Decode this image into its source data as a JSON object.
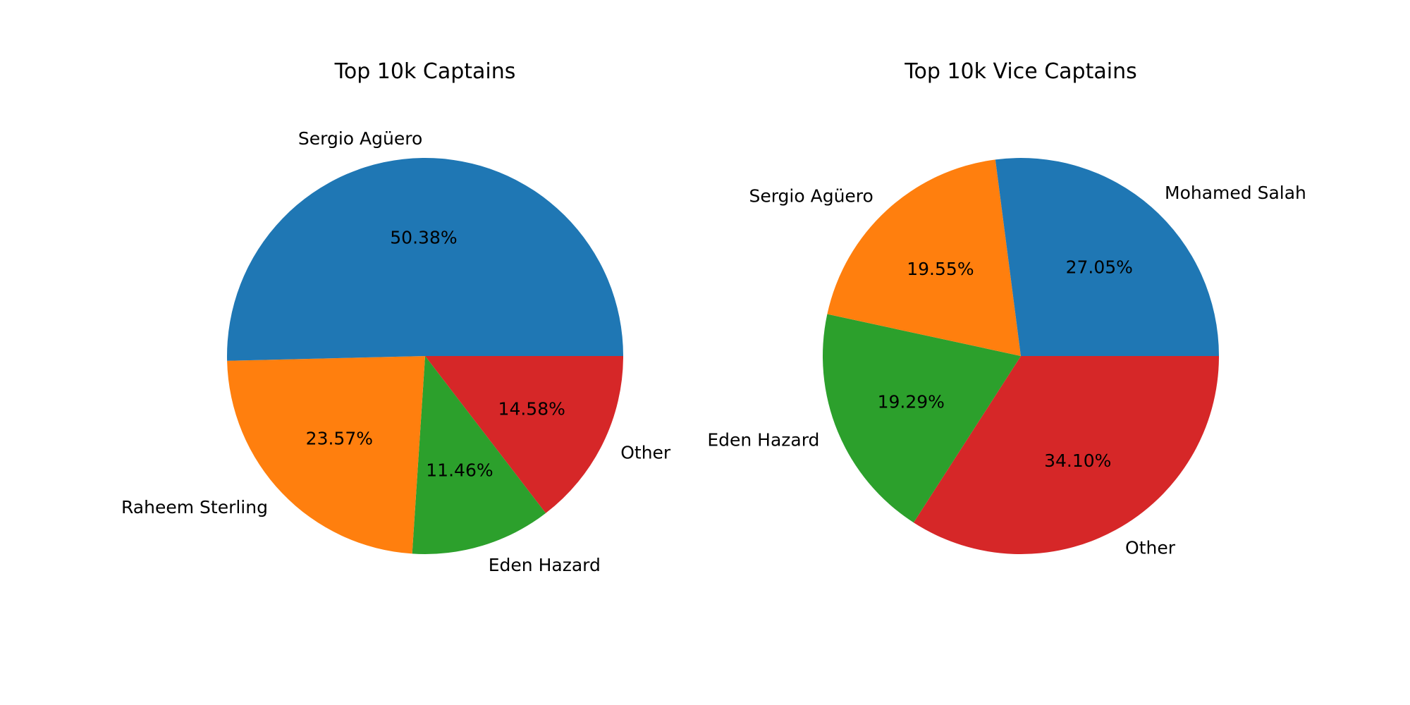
{
  "chart_data": [
    {
      "type": "pie",
      "title": "Top 10k Captains",
      "labels": [
        "Sergio Agüero",
        "Raheem Sterling",
        "Eden Hazard",
        "Other"
      ],
      "values": [
        50.38,
        23.57,
        11.46,
        14.58
      ],
      "pct_labels": [
        "50.38%",
        "23.57%",
        "11.46%",
        "14.58%"
      ],
      "colors": [
        "#1f77b4",
        "#ff7f0e",
        "#2ca02c",
        "#d62728"
      ],
      "start_angle_deg": 0,
      "direction": "counterclockwise"
    },
    {
      "type": "pie",
      "title": "Top 10k Vice Captains",
      "labels": [
        "Mohamed Salah",
        "Sergio Agüero",
        "Eden Hazard",
        "Other"
      ],
      "values": [
        27.05,
        19.55,
        19.29,
        34.1
      ],
      "pct_labels": [
        "27.05%",
        "19.55%",
        "19.29%",
        "34.10%"
      ],
      "colors": [
        "#1f77b4",
        "#ff7f0e",
        "#2ca02c",
        "#d62728"
      ],
      "start_angle_deg": 0,
      "direction": "counterclockwise"
    }
  ]
}
